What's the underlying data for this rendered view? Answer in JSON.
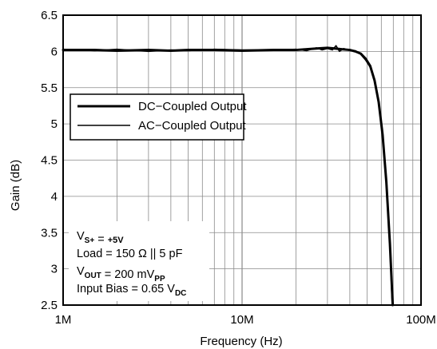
{
  "chart_data": {
    "type": "line",
    "title": "",
    "xlabel": "Frequency (Hz)",
    "ylabel": "Gain (dB)",
    "x_scale": "log",
    "xlim": [
      1000000,
      100000000
    ],
    "ylim": [
      2.5,
      6.5
    ],
    "grid": true,
    "x_tick_labels": [
      {
        "value": 1000000,
        "label": "1M"
      },
      {
        "value": 10000000,
        "label": "10M"
      },
      {
        "value": 100000000,
        "label": "100M"
      }
    ],
    "y_ticks": [
      2.5,
      3,
      3.5,
      4,
      4.5,
      5,
      5.5,
      6,
      6.5
    ],
    "y_tick_labels": [
      "2.5",
      "3",
      "3.5",
      "4",
      "4.5",
      "5",
      "5.5",
      "6",
      "6.5"
    ],
    "legend": {
      "position": "upper-left"
    },
    "series": [
      {
        "name": "DC−Coupled Output",
        "line_width": 3,
        "color": "#000000",
        "x": [
          1000000,
          1500000,
          2000000,
          3000000,
          4000000,
          5000000,
          7000000,
          10000000,
          15000000,
          20000000,
          23000000,
          26000000,
          30000000,
          33000000,
          36000000,
          40000000,
          43000000,
          46000000,
          49000000,
          52000000,
          55000000,
          58000000,
          61000000,
          64000000,
          67000000,
          69500000
        ],
        "y": [
          6.02,
          6.02,
          6.01,
          6.02,
          6.01,
          6.02,
          6.02,
          6.01,
          6.02,
          6.02,
          6.03,
          6.04,
          6.05,
          6.04,
          6.03,
          6.02,
          6.0,
          5.97,
          5.9,
          5.8,
          5.6,
          5.3,
          4.85,
          4.2,
          3.35,
          2.5
        ]
      },
      {
        "name": "AC−Coupled Output",
        "line_width": 1.5,
        "color": "#000000",
        "x": [
          1000000,
          1500000,
          2000000,
          3000000,
          4000000,
          5000000,
          7000000,
          10000000,
          15000000,
          20000000,
          23000000,
          26000000,
          28000000,
          30000000,
          32000000,
          33500000,
          35000000,
          37000000,
          40000000,
          43000000,
          46000000,
          49000000,
          52000000,
          55000000,
          58000000,
          61000000,
          64000000,
          67000000,
          69000000
        ],
        "y": [
          6.03,
          6.01,
          6.03,
          6.0,
          6.02,
          6.01,
          6.03,
          6.02,
          6.02,
          6.03,
          6.01,
          6.05,
          6.02,
          6.04,
          6.02,
          6.08,
          6.0,
          6.04,
          6.01,
          6.01,
          5.96,
          5.88,
          5.78,
          5.58,
          5.28,
          4.82,
          4.15,
          3.3,
          2.5
        ]
      }
    ],
    "annotation": {
      "lines": [
        [
          {
            "t": "V"
          },
          {
            "t": "S+",
            "sub": true
          },
          {
            "t": " = "
          },
          {
            "t": "+5V",
            "small": true
          }
        ],
        [
          {
            "t": "Load = 150 Ω || 5 pF"
          }
        ],
        [
          {
            "t": "V"
          },
          {
            "t": "OUT",
            "sub": true
          },
          {
            "t": " = 200 mV"
          },
          {
            "t": "PP",
            "sub": true
          }
        ],
        [
          {
            "t": "Input Bias = 0.65 V"
          },
          {
            "t": "DC",
            "sub": true
          }
        ]
      ]
    }
  }
}
